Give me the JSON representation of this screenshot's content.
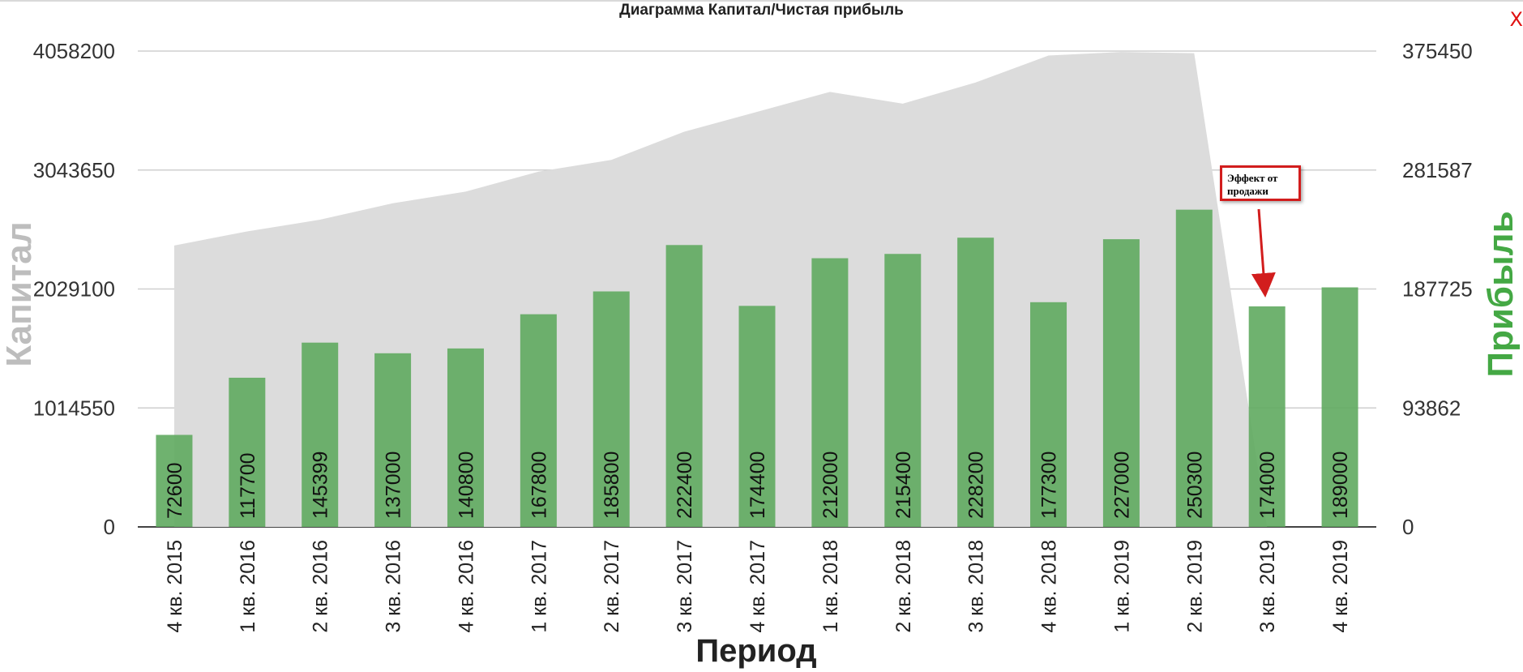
{
  "chart_data": {
    "type": "bar",
    "title": "Диаграмма Капитал/Чистая прибыль",
    "xlabel": "Период",
    "ylabel_left": "Капитал",
    "ylabel_right": "Прибыль",
    "categories": [
      "4 кв. 2015",
      "1 кв. 2016",
      "2 кв. 2016",
      "3 кв. 2016",
      "4 кв. 2016",
      "1 кв. 2017",
      "2 кв. 2017",
      "3 кв. 2017",
      "4 кв. 2017",
      "1 кв. 2018",
      "2 кв. 2018",
      "3 кв. 2018",
      "4 кв. 2018",
      "1 кв. 2019",
      "2 кв. 2019",
      "3 кв. 2019",
      "4 кв. 2019"
    ],
    "series": [
      {
        "name": "Капитал",
        "type": "area",
        "axis": "left",
        "color": "#dcdcdc",
        "values": [
          2400000,
          2520000,
          2620000,
          2760000,
          2860000,
          3030000,
          3130000,
          3370000,
          3540000,
          3710000,
          3610000,
          3790000,
          4020000,
          4050000,
          4040000,
          0,
          0
        ]
      },
      {
        "name": "Прибыль",
        "type": "bar",
        "axis": "right",
        "color": "#5faa5f",
        "values": [
          72600,
          117700,
          145399,
          137000,
          140800,
          167800,
          185800,
          222400,
          174400,
          212000,
          215400,
          228200,
          177300,
          227000,
          250300,
          174000,
          189000
        ]
      }
    ],
    "y_left": {
      "ticks": [
        "0",
        "1014550",
        "2029100",
        "3043650",
        "4058200"
      ],
      "lim": [
        0,
        4058200
      ]
    },
    "y_right": {
      "ticks": [
        "0",
        "93862",
        "187725",
        "281587",
        "375450"
      ],
      "lim": [
        0,
        375450
      ]
    },
    "grid": true,
    "annotation": {
      "text_line1": "Эффект от",
      "text_line2": "продажи",
      "category": "3 кв. 2019"
    }
  },
  "ui": {
    "close_label": "X"
  }
}
